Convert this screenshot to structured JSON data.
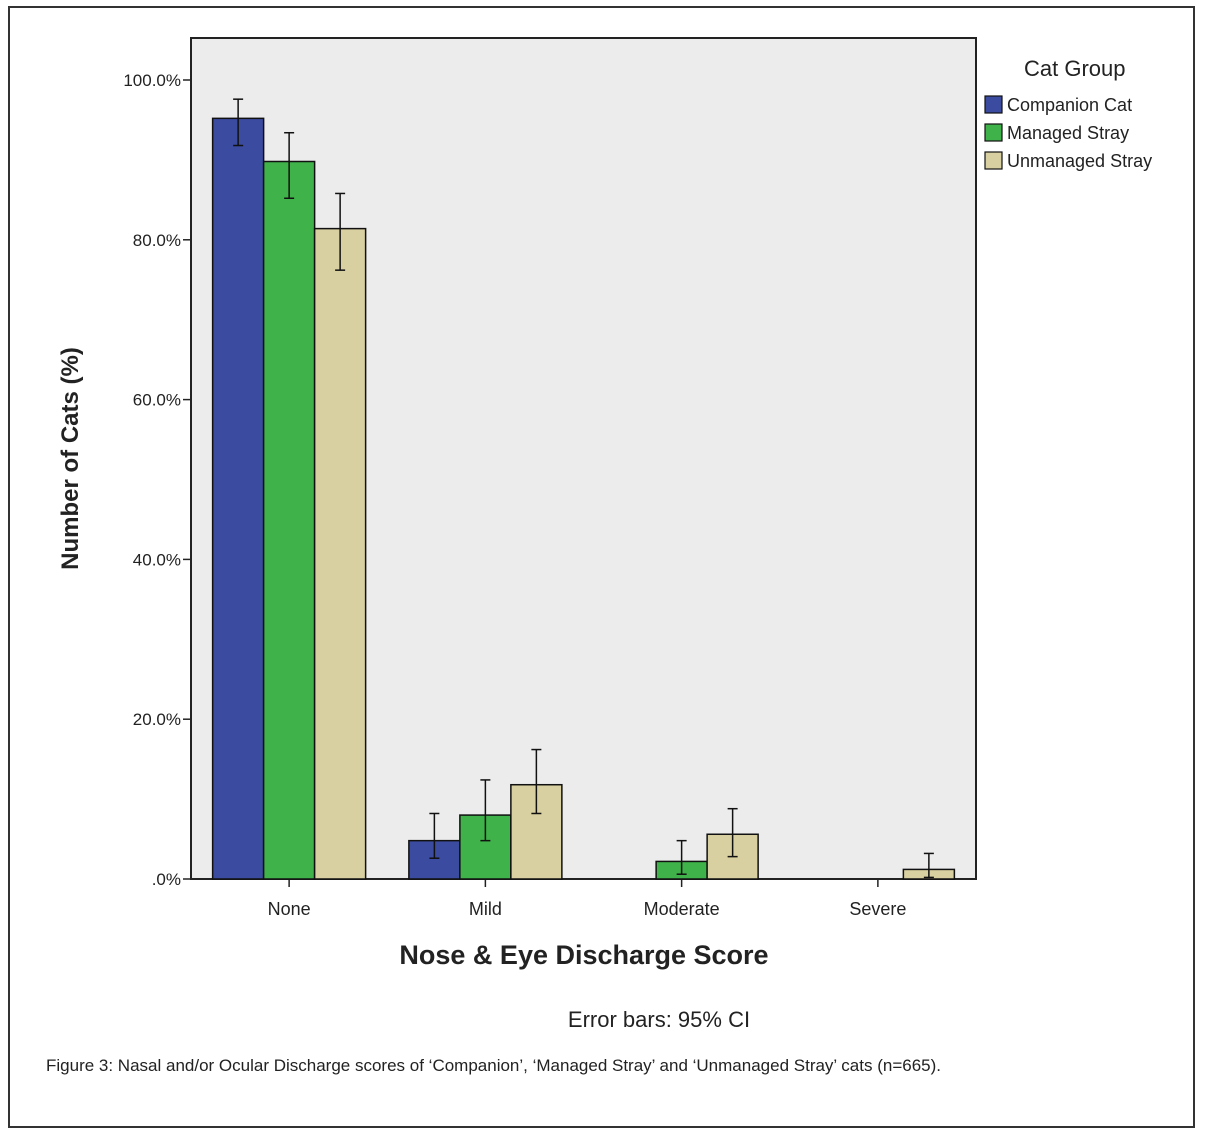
{
  "chart_data": {
    "type": "bar",
    "categories": [
      "None",
      "Mild",
      "Moderate",
      "Severe"
    ],
    "series": [
      {
        "name": "Companion Cat",
        "color": "#3b4ba0",
        "values": [
          95.2,
          4.8,
          0.0,
          0.0
        ],
        "ci_low": [
          91.8,
          2.6,
          0.0,
          0.0
        ],
        "ci_high": [
          97.6,
          8.2,
          0.0,
          0.0
        ]
      },
      {
        "name": "Managed Stray",
        "color": "#3fb34a",
        "values": [
          89.8,
          8.0,
          2.2,
          0.0
        ],
        "ci_low": [
          85.2,
          4.8,
          0.6,
          0.0
        ],
        "ci_high": [
          93.4,
          12.4,
          4.8,
          0.0
        ]
      },
      {
        "name": "Unmanaged Stray",
        "color": "#d8d0a0",
        "values": [
          81.4,
          11.8,
          5.6,
          1.2
        ],
        "ci_low": [
          76.2,
          8.2,
          2.8,
          0.2
        ],
        "ci_high": [
          85.8,
          16.2,
          8.8,
          3.2
        ]
      }
    ],
    "ylim": [
      0,
      100
    ],
    "yticks": [
      0,
      20,
      40,
      60,
      80,
      100
    ],
    "ytick_labels": [
      ".0%",
      "20.0%",
      "40.0%",
      "60.0%",
      "80.0%",
      "100.0%"
    ],
    "xlabel": "Nose & Eye Discharge Score",
    "ylabel": "Number of Cats (%)",
    "legend_title": "Cat Group",
    "legend_position": "right",
    "grid": false,
    "note": "Error bars: 95% CI"
  },
  "caption": "Figure 3:  Nasal and/or Ocular Discharge scores of ‘Companion’, ‘Managed Stray’ and ‘Unmanaged Stray’ cats (n=665).",
  "colors": {
    "plot_background": "#ececec",
    "axis": "#222222"
  }
}
